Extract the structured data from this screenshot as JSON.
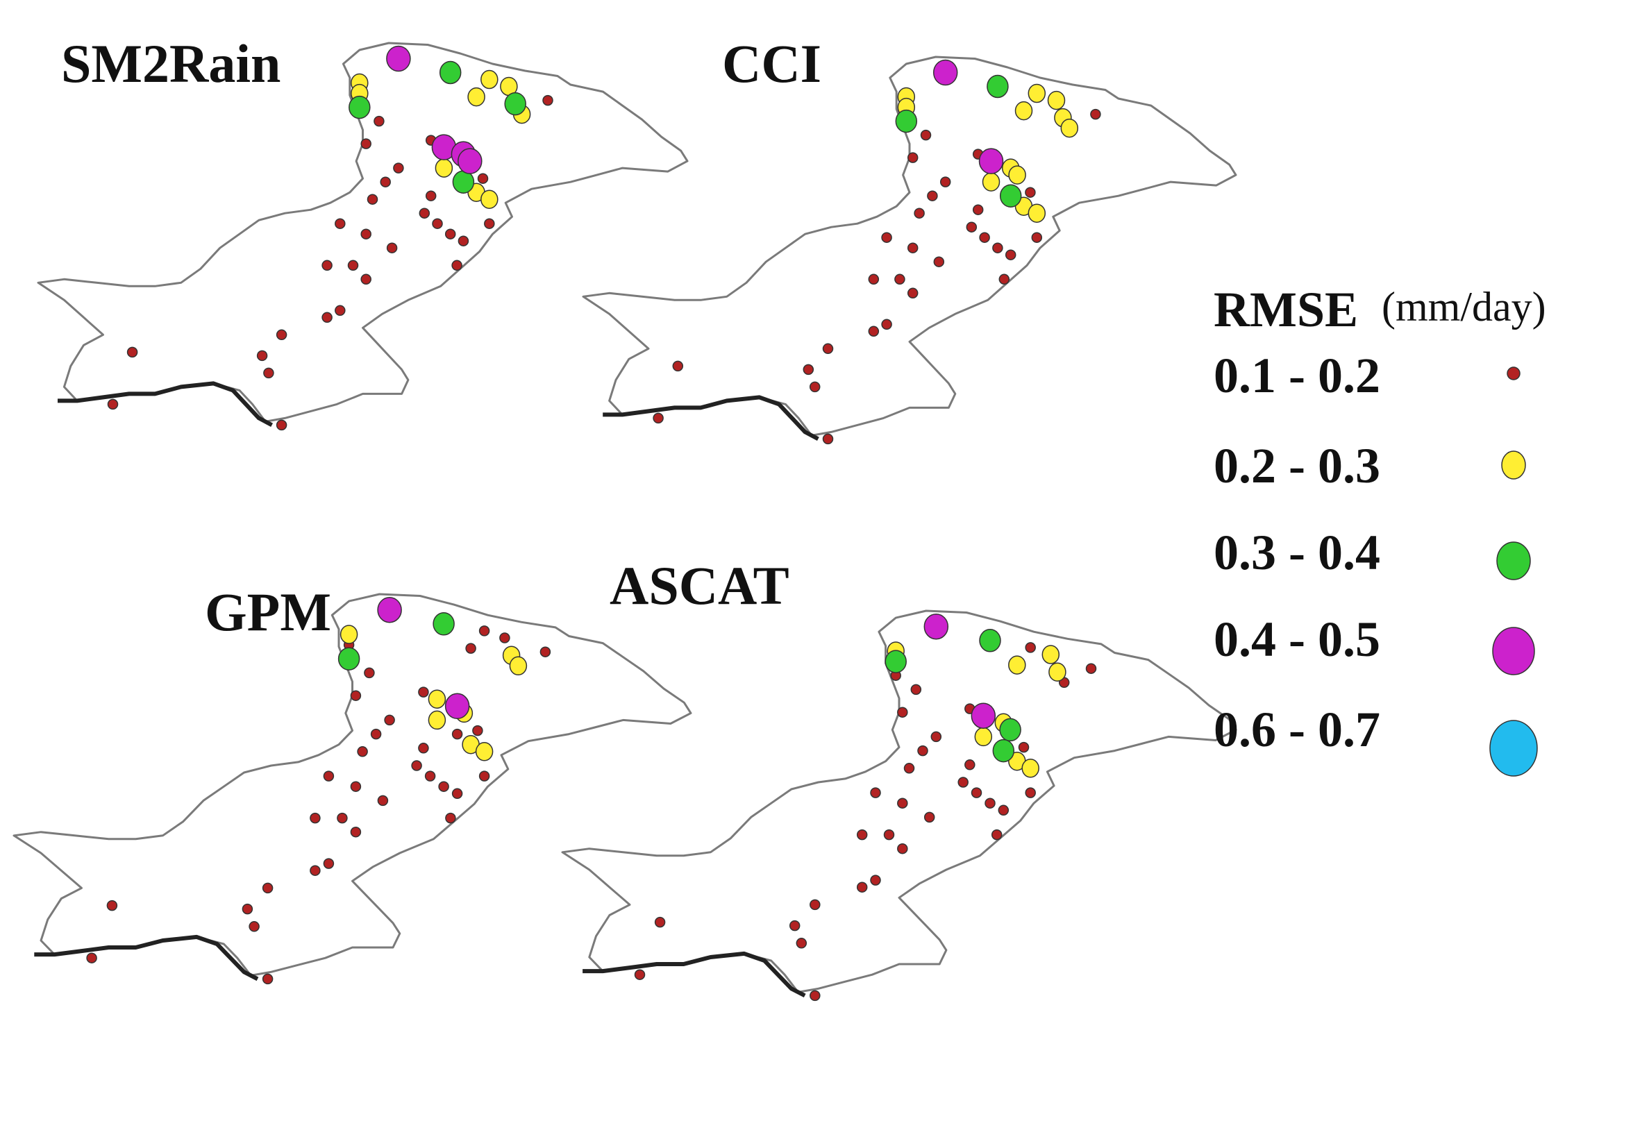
{
  "figure": {
    "legend": {
      "title": "RMSE",
      "unit": "(mm/day)",
      "classes": [
        {
          "label": "0.1 - 0.2",
          "color": "#b22222",
          "cls": 0
        },
        {
          "label": "0.2 - 0.3",
          "color": "#ffee33",
          "cls": 1
        },
        {
          "label": "0.3 - 0.4",
          "color": "#33cc33",
          "cls": 2
        },
        {
          "label": "0.4 - 0.5",
          "color": "#cc22cc",
          "cls": 3
        },
        {
          "label": "0.6 - 0.7",
          "color": "#22bbee",
          "cls": 4
        }
      ]
    },
    "panels": [
      {
        "id": "sm2rain",
        "title": "SM2Rain",
        "stations": [
          [
            0.555,
            0.045,
            3
          ],
          [
            0.635,
            0.085,
            2
          ],
          [
            0.495,
            0.115,
            1
          ],
          [
            0.495,
            0.145,
            1
          ],
          [
            0.695,
            0.105,
            1
          ],
          [
            0.725,
            0.125,
            1
          ],
          [
            0.675,
            0.155,
            1
          ],
          [
            0.735,
            0.175,
            2
          ],
          [
            0.745,
            0.205,
            1
          ],
          [
            0.785,
            0.165,
            0
          ],
          [
            0.495,
            0.185,
            2
          ],
          [
            0.525,
            0.225,
            0
          ],
          [
            0.505,
            0.29,
            0
          ],
          [
            0.605,
            0.28,
            0
          ],
          [
            0.625,
            0.3,
            3
          ],
          [
            0.655,
            0.32,
            3
          ],
          [
            0.665,
            0.34,
            3
          ],
          [
            0.625,
            0.36,
            1
          ],
          [
            0.655,
            0.4,
            2
          ],
          [
            0.675,
            0.43,
            1
          ],
          [
            0.695,
            0.45,
            1
          ],
          [
            0.685,
            0.39,
            0
          ],
          [
            0.555,
            0.36,
            0
          ],
          [
            0.535,
            0.4,
            0
          ],
          [
            0.515,
            0.45,
            0
          ],
          [
            0.605,
            0.44,
            0
          ],
          [
            0.595,
            0.49,
            0
          ],
          [
            0.615,
            0.52,
            0
          ],
          [
            0.635,
            0.55,
            0
          ],
          [
            0.655,
            0.57,
            0
          ],
          [
            0.695,
            0.52,
            0
          ],
          [
            0.465,
            0.52,
            0
          ],
          [
            0.505,
            0.55,
            0
          ],
          [
            0.545,
            0.59,
            0
          ],
          [
            0.445,
            0.64,
            0
          ],
          [
            0.485,
            0.64,
            0
          ],
          [
            0.505,
            0.68,
            0
          ],
          [
            0.645,
            0.64,
            0
          ],
          [
            0.465,
            0.77,
            0
          ],
          [
            0.445,
            0.79,
            0
          ],
          [
            0.375,
            0.84,
            0
          ],
          [
            0.345,
            0.9,
            0
          ],
          [
            0.355,
            0.95,
            0
          ],
          [
            0.375,
            1.1,
            0
          ],
          [
            0.145,
            0.89,
            0
          ],
          [
            0.115,
            1.04,
            0
          ]
        ]
      },
      {
        "id": "cci",
        "title": "CCI",
        "stations": [
          [
            0.555,
            0.045,
            3
          ],
          [
            0.635,
            0.085,
            2
          ],
          [
            0.495,
            0.115,
            1
          ],
          [
            0.495,
            0.145,
            1
          ],
          [
            0.695,
            0.105,
            1
          ],
          [
            0.725,
            0.125,
            1
          ],
          [
            0.675,
            0.155,
            1
          ],
          [
            0.735,
            0.175,
            1
          ],
          [
            0.745,
            0.205,
            1
          ],
          [
            0.785,
            0.165,
            0
          ],
          [
            0.495,
            0.185,
            2
          ],
          [
            0.525,
            0.225,
            0
          ],
          [
            0.505,
            0.29,
            0
          ],
          [
            0.605,
            0.28,
            0
          ],
          [
            0.625,
            0.3,
            3
          ],
          [
            0.655,
            0.32,
            1
          ],
          [
            0.665,
            0.34,
            1
          ],
          [
            0.625,
            0.36,
            1
          ],
          [
            0.655,
            0.4,
            2
          ],
          [
            0.675,
            0.43,
            1
          ],
          [
            0.695,
            0.45,
            1
          ],
          [
            0.685,
            0.39,
            0
          ],
          [
            0.555,
            0.36,
            0
          ],
          [
            0.535,
            0.4,
            0
          ],
          [
            0.515,
            0.45,
            0
          ],
          [
            0.605,
            0.44,
            0
          ],
          [
            0.595,
            0.49,
            0
          ],
          [
            0.615,
            0.52,
            0
          ],
          [
            0.635,
            0.55,
            0
          ],
          [
            0.655,
            0.57,
            0
          ],
          [
            0.695,
            0.52,
            0
          ],
          [
            0.465,
            0.52,
            0
          ],
          [
            0.505,
            0.55,
            0
          ],
          [
            0.545,
            0.59,
            0
          ],
          [
            0.445,
            0.64,
            0
          ],
          [
            0.485,
            0.64,
            0
          ],
          [
            0.505,
            0.68,
            0
          ],
          [
            0.645,
            0.64,
            0
          ],
          [
            0.465,
            0.77,
            0
          ],
          [
            0.445,
            0.79,
            0
          ],
          [
            0.375,
            0.84,
            0
          ],
          [
            0.345,
            0.9,
            0
          ],
          [
            0.355,
            0.95,
            0
          ],
          [
            0.375,
            1.1,
            0
          ],
          [
            0.145,
            0.89,
            0
          ],
          [
            0.115,
            1.04,
            0
          ]
        ]
      },
      {
        "id": "gpm",
        "title": "GPM",
        "stations": [
          [
            0.555,
            0.045,
            3
          ],
          [
            0.635,
            0.085,
            2
          ],
          [
            0.495,
            0.115,
            1
          ],
          [
            0.495,
            0.145,
            0
          ],
          [
            0.695,
            0.105,
            0
          ],
          [
            0.725,
            0.125,
            0
          ],
          [
            0.675,
            0.155,
            0
          ],
          [
            0.735,
            0.175,
            1
          ],
          [
            0.745,
            0.205,
            1
          ],
          [
            0.785,
            0.165,
            0
          ],
          [
            0.495,
            0.185,
            2
          ],
          [
            0.525,
            0.225,
            0
          ],
          [
            0.505,
            0.29,
            0
          ],
          [
            0.605,
            0.28,
            0
          ],
          [
            0.625,
            0.3,
            1
          ],
          [
            0.655,
            0.32,
            3
          ],
          [
            0.665,
            0.34,
            1
          ],
          [
            0.625,
            0.36,
            1
          ],
          [
            0.655,
            0.4,
            0
          ],
          [
            0.675,
            0.43,
            1
          ],
          [
            0.695,
            0.45,
            1
          ],
          [
            0.685,
            0.39,
            0
          ],
          [
            0.555,
            0.36,
            0
          ],
          [
            0.535,
            0.4,
            0
          ],
          [
            0.515,
            0.45,
            0
          ],
          [
            0.605,
            0.44,
            0
          ],
          [
            0.595,
            0.49,
            0
          ],
          [
            0.615,
            0.52,
            0
          ],
          [
            0.635,
            0.55,
            0
          ],
          [
            0.655,
            0.57,
            0
          ],
          [
            0.695,
            0.52,
            0
          ],
          [
            0.465,
            0.52,
            0
          ],
          [
            0.505,
            0.55,
            0
          ],
          [
            0.545,
            0.59,
            0
          ],
          [
            0.445,
            0.64,
            0
          ],
          [
            0.485,
            0.64,
            0
          ],
          [
            0.505,
            0.68,
            0
          ],
          [
            0.645,
            0.64,
            0
          ],
          [
            0.465,
            0.77,
            0
          ],
          [
            0.445,
            0.79,
            0
          ],
          [
            0.375,
            0.84,
            0
          ],
          [
            0.345,
            0.9,
            0
          ],
          [
            0.355,
            0.95,
            0
          ],
          [
            0.375,
            1.1,
            0
          ],
          [
            0.145,
            0.89,
            0
          ],
          [
            0.115,
            1.04,
            0
          ]
        ]
      },
      {
        "id": "ascat",
        "title": "ASCAT",
        "stations": [
          [
            0.555,
            0.045,
            3
          ],
          [
            0.635,
            0.085,
            2
          ],
          [
            0.495,
            0.115,
            1
          ],
          [
            0.495,
            0.145,
            2
          ],
          [
            0.695,
            0.105,
            0
          ],
          [
            0.725,
            0.125,
            1
          ],
          [
            0.675,
            0.155,
            1
          ],
          [
            0.735,
            0.175,
            1
          ],
          [
            0.745,
            0.205,
            0
          ],
          [
            0.785,
            0.165,
            0
          ],
          [
            0.495,
            0.185,
            0
          ],
          [
            0.525,
            0.225,
            0
          ],
          [
            0.505,
            0.29,
            0
          ],
          [
            0.605,
            0.28,
            0
          ],
          [
            0.625,
            0.3,
            3
          ],
          [
            0.655,
            0.32,
            1
          ],
          [
            0.665,
            0.34,
            2
          ],
          [
            0.625,
            0.36,
            1
          ],
          [
            0.655,
            0.4,
            2
          ],
          [
            0.675,
            0.43,
            1
          ],
          [
            0.695,
            0.45,
            1
          ],
          [
            0.685,
            0.39,
            0
          ],
          [
            0.555,
            0.36,
            0
          ],
          [
            0.535,
            0.4,
            0
          ],
          [
            0.515,
            0.45,
            0
          ],
          [
            0.605,
            0.44,
            0
          ],
          [
            0.595,
            0.49,
            0
          ],
          [
            0.615,
            0.52,
            0
          ],
          [
            0.635,
            0.55,
            0
          ],
          [
            0.655,
            0.57,
            0
          ],
          [
            0.695,
            0.52,
            0
          ],
          [
            0.465,
            0.52,
            0
          ],
          [
            0.505,
            0.55,
            0
          ],
          [
            0.545,
            0.59,
            0
          ],
          [
            0.445,
            0.64,
            0
          ],
          [
            0.485,
            0.64,
            0
          ],
          [
            0.505,
            0.68,
            0
          ],
          [
            0.645,
            0.64,
            0
          ],
          [
            0.465,
            0.77,
            0
          ],
          [
            0.445,
            0.79,
            0
          ],
          [
            0.375,
            0.84,
            0
          ],
          [
            0.345,
            0.9,
            0
          ],
          [
            0.355,
            0.95,
            0
          ],
          [
            0.375,
            1.1,
            0
          ],
          [
            0.145,
            0.89,
            0
          ],
          [
            0.115,
            1.04,
            0
          ]
        ]
      }
    ]
  }
}
